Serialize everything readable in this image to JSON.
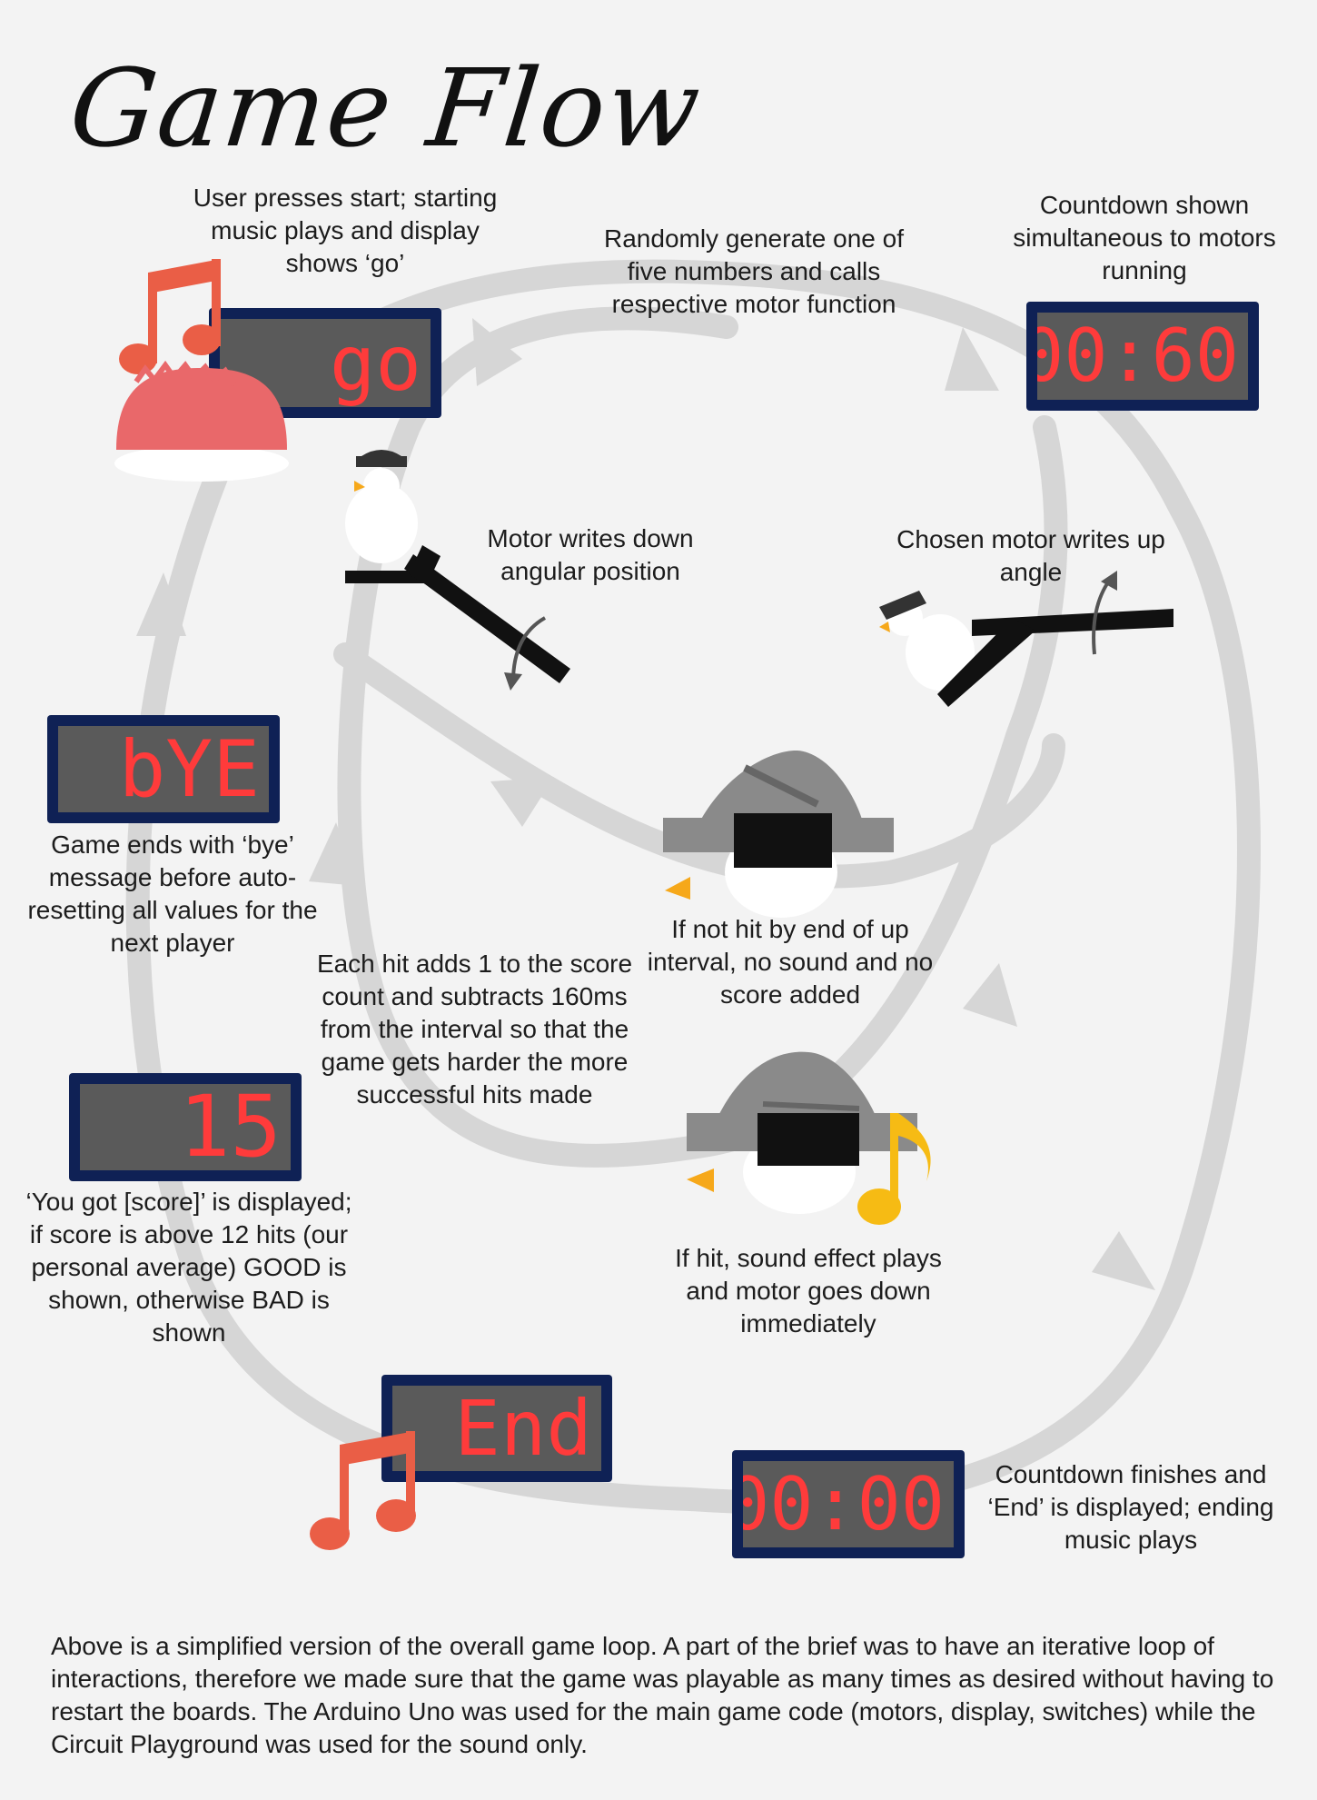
{
  "title": "Game Flow",
  "colors": {
    "background": "#f3f3f3",
    "loop": "#d6d6d6",
    "display_frame": "#0f2155",
    "display_screen": "#5a5a5a",
    "display_digits": "#ff3b3b",
    "start_music_note": "#ea5e46",
    "hit_music_note": "#f6bb14",
    "button": "#e9686a",
    "motor_arm": "#111111",
    "target_hat": "#8a8a8a"
  },
  "steps": {
    "start": "User presses start; starting music plays and display shows ‘go’",
    "random": "Randomly generate one of five numbers and calls respective motor function",
    "countdown": "Countdown shown simultaneous to motors running",
    "motor_down": "Motor writes down angular position",
    "motor_up": "Chosen motor writes up angle",
    "bye": "Game ends with ‘bye’ message before auto-resetting all values for the next player",
    "not_hit": "If not hit by end of up interval, no sound and no score added",
    "hit_adds": "Each hit adds 1 to the score count and subtracts 160ms from the interval so that the game gets harder the more successful hits made",
    "score": "‘You got [score]’ is displayed; if score is above 12 hits (our personal average) GOOD is shown, otherwise BAD is shown",
    "hit": "If hit, sound effect plays and motor goes down immediately",
    "finish": "Countdown finishes and ‘End’ is displayed; ending music plays"
  },
  "displays": {
    "go": "go",
    "countdown_start": "00:60",
    "bye": "bYE",
    "score": "15",
    "end": "End",
    "countdown_end": "00:00"
  },
  "icons": {
    "start_note": "music-note-icon",
    "start_button": "arcade-button-icon",
    "motor_down": "motor-arm-down-icon",
    "motor_up": "motor-arm-up-icon",
    "target": "penguin-target-icon",
    "hit_note": "music-note-icon",
    "end_note": "music-note-icon"
  },
  "footer": "Above is a simplified version of the overall game loop. A part of the brief was to have an iterative loop of interactions, therefore we made sure that the game was playable as many times as desired without having to restart the boards. The Arduino Uno was used for the main game code (motors, display, switches) while the Circuit Playground was used for the sound only."
}
